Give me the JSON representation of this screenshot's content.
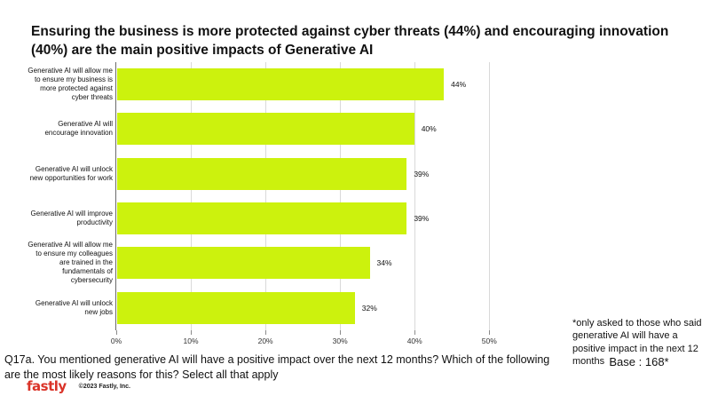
{
  "title": "Ensuring the business is more protected against cyber threats (44%) and encouraging innovation (40%) are the main positive impacts of Generative AI",
  "chart_data": {
    "type": "bar",
    "orientation": "horizontal",
    "categories": [
      "Generative AI will allow me to ensure my business is more protected against cyber threats",
      "Generative AI will encourage innovation",
      "Generative AI will unlock new opportunities for work",
      "Generative AI will improve productivity",
      "Generative AI will allow me to ensure my colleagues are trained in the fundamentals of cybersecurity",
      "Generative AI will unlock new jobs"
    ],
    "values": [
      44,
      40,
      39,
      39,
      34,
      32
    ],
    "value_labels": [
      "44%",
      "40%",
      "39%",
      "39%",
      "34%",
      "32%"
    ],
    "x_ticks": [
      {
        "value": 0,
        "label": "0%"
      },
      {
        "value": 10,
        "label": "10%"
      },
      {
        "value": 20,
        "label": "20%"
      },
      {
        "value": 30,
        "label": "30%"
      },
      {
        "value": 40,
        "label": "40%"
      },
      {
        "value": 50,
        "label": "50%"
      }
    ],
    "xlim": [
      0,
      53.3
    ],
    "bar_color": "#ccf20d",
    "grid": "vertical",
    "legend": "none",
    "title": "",
    "xlabel": "",
    "ylabel": ""
  },
  "annotation": {
    "note": "*only asked to those who said generative AI will have a positive impact in the next 12 months",
    "base": "Base : 168*"
  },
  "question": "Q17a.  You mentioned generative AI will have a positive impact over the next 12 months? Which of the following are the most likely reasons for this? Select all that apply",
  "footer": {
    "logo": "fastly",
    "copyright": "©2023 Fastly, Inc."
  }
}
